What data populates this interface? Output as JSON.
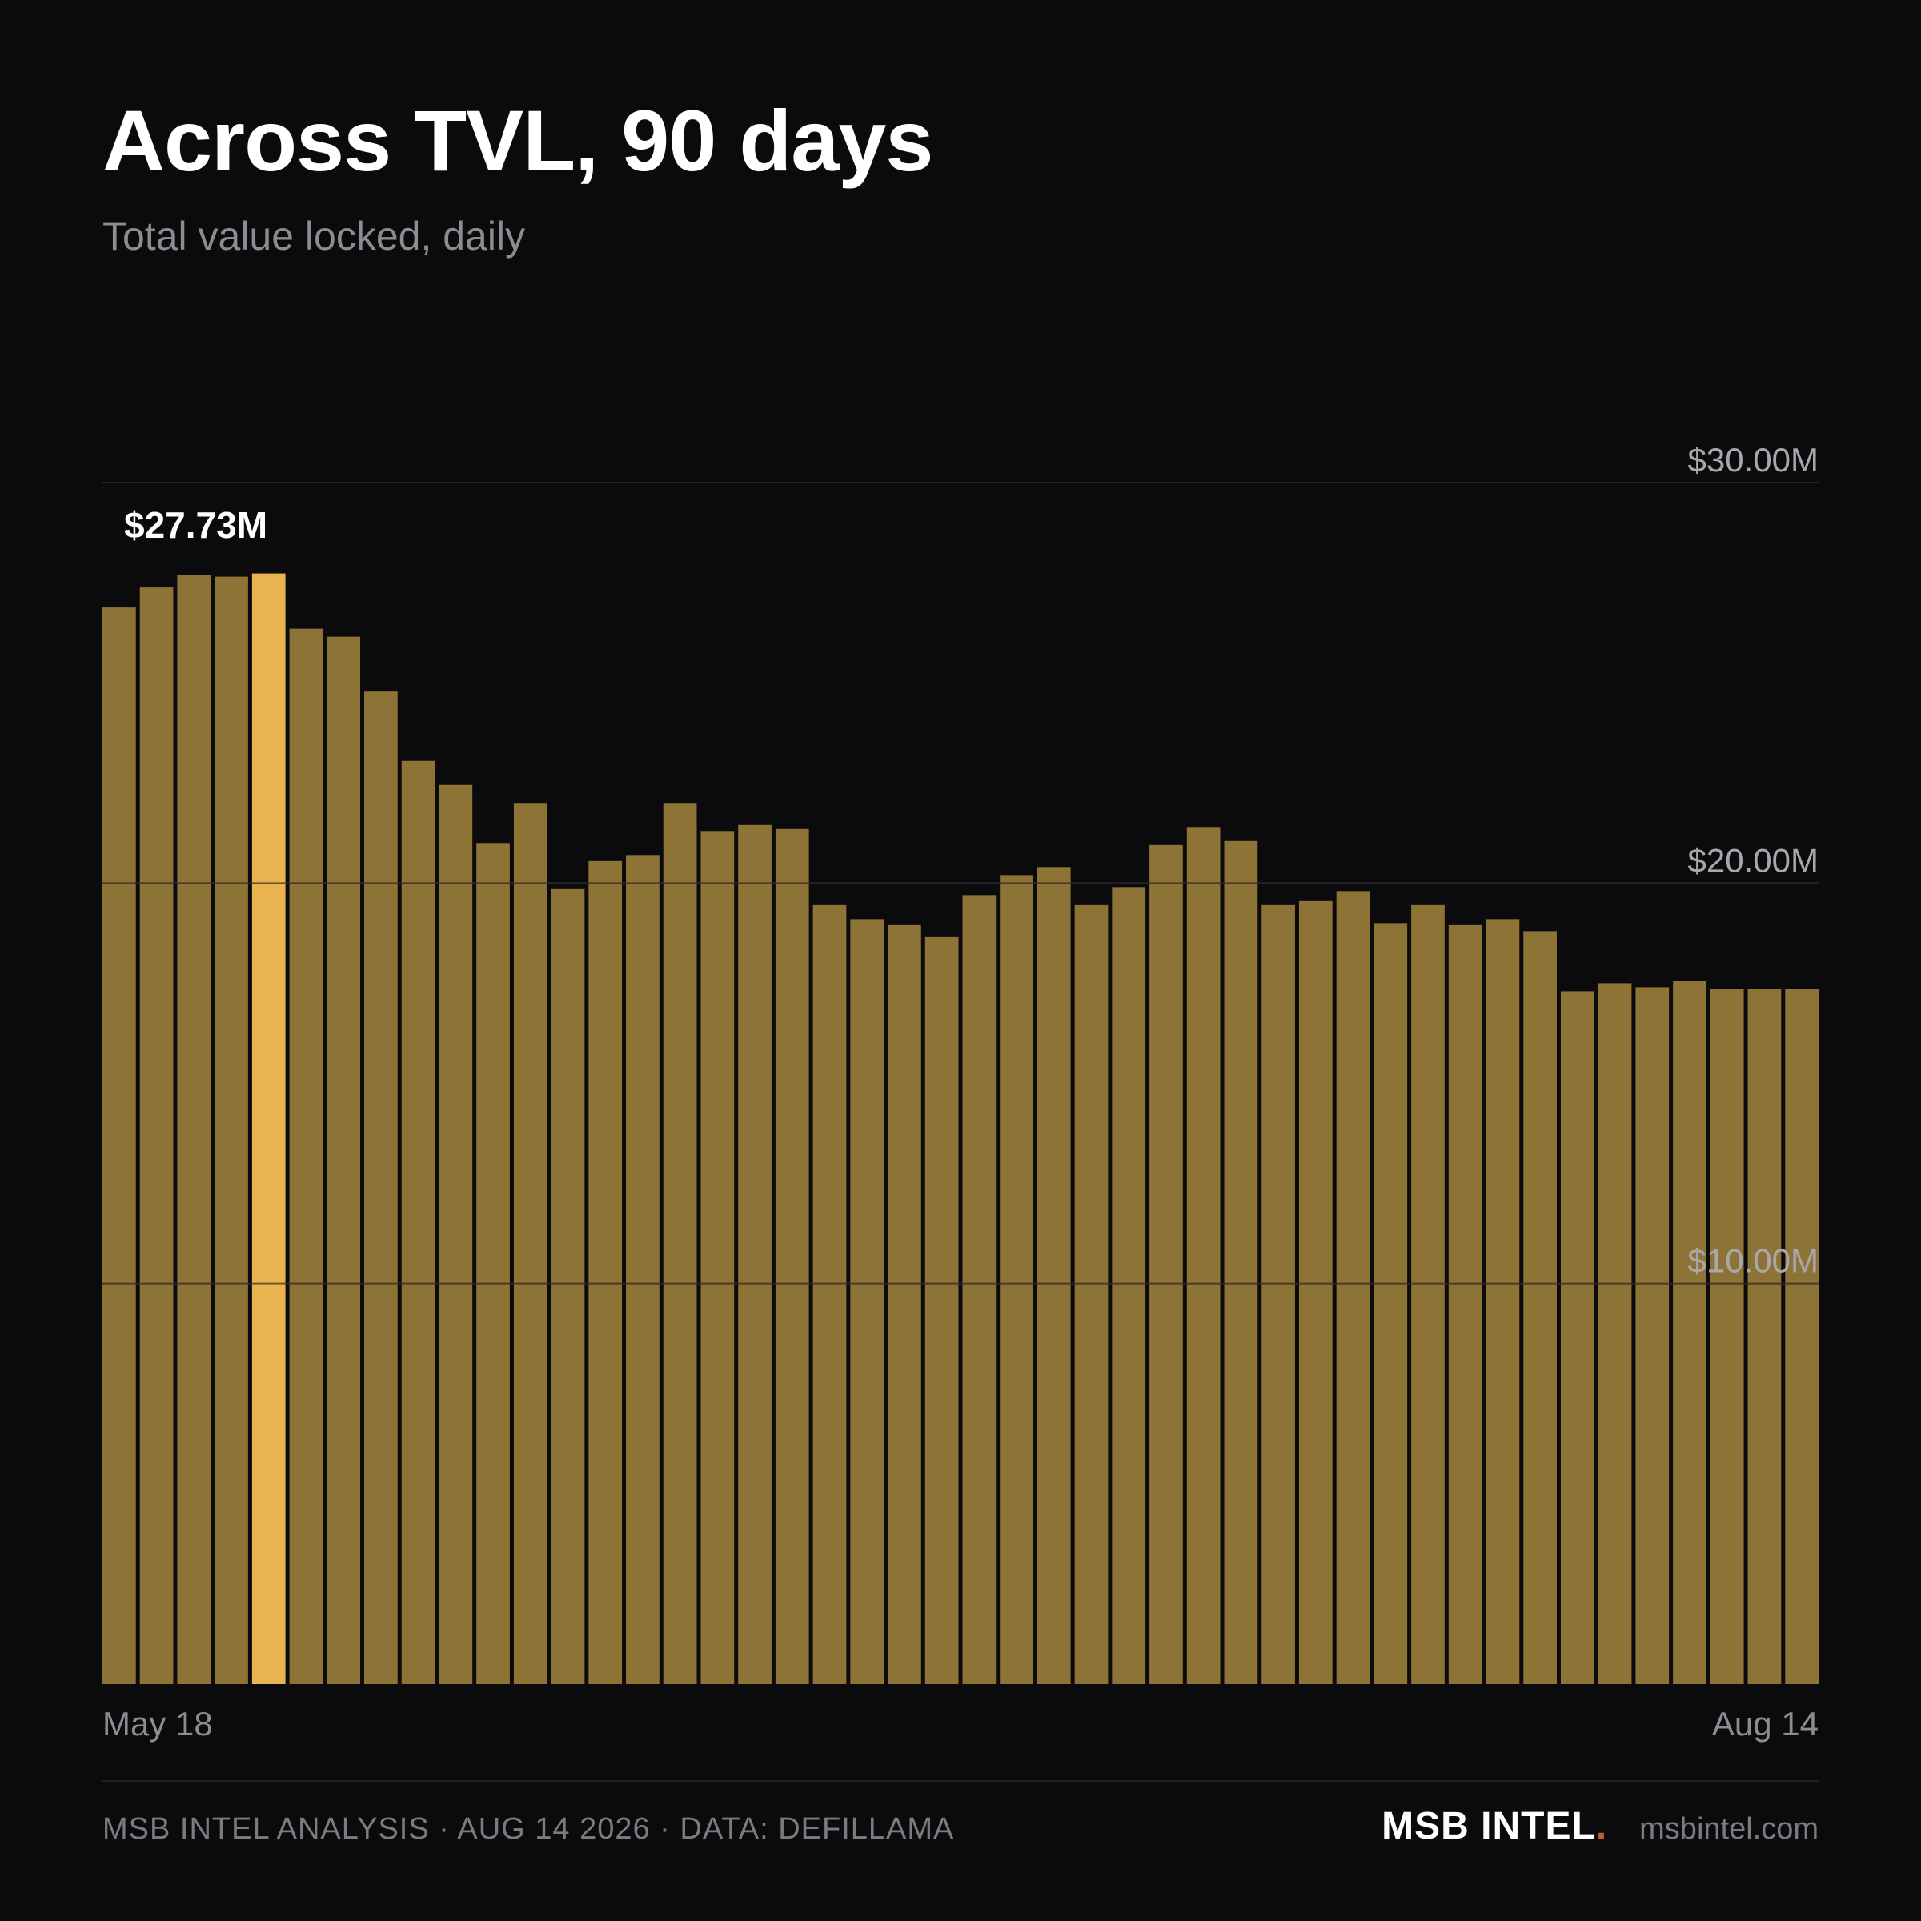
{
  "header": {
    "title": "Across TVL, 90 days",
    "subtitle": "Total value locked, daily"
  },
  "colors": {
    "background": "#0b0a0c",
    "bar": "#8d7436",
    "bar_highlight": "#e9b34f",
    "gridline": "#3a383c",
    "brand_dot": "#c0603a"
  },
  "chart_data": {
    "type": "bar",
    "title": "Across TVL, 90 days",
    "subtitle": "Total value locked, daily",
    "x_start_label": "May 18",
    "x_end_label": "Aug 14",
    "y_unit": "$M",
    "ylim": [
      0,
      30
    ],
    "y_ticks": [
      {
        "value": 30,
        "label": "$30.00M"
      },
      {
        "value": 20,
        "label": "$20.00M"
      },
      {
        "value": 10,
        "label": "$10.00M"
      }
    ],
    "grid": true,
    "highlight_index": 4,
    "highlight_label": "$27.73M",
    "values": [
      26.9,
      27.4,
      27.7,
      27.65,
      27.73,
      26.35,
      26.15,
      24.8,
      23.05,
      22.45,
      21.0,
      22.0,
      19.85,
      20.55,
      20.7,
      22.0,
      21.3,
      21.45,
      21.35,
      19.45,
      19.1,
      18.95,
      18.65,
      19.7,
      20.2,
      20.4,
      19.45,
      19.9,
      20.95,
      21.4,
      21.05,
      19.45,
      19.55,
      19.8,
      19.0,
      19.45,
      18.95,
      19.1,
      18.8,
      17.3,
      17.5,
      17.4,
      17.55,
      17.35,
      17.35,
      17.35
    ]
  },
  "footer": {
    "attribution": "MSB INTEL ANALYSIS · AUG 14 2026 · DATA: DEFILLAMA",
    "brand": "MSB INTEL",
    "brand_dot": ".",
    "site": "msbintel.com"
  }
}
